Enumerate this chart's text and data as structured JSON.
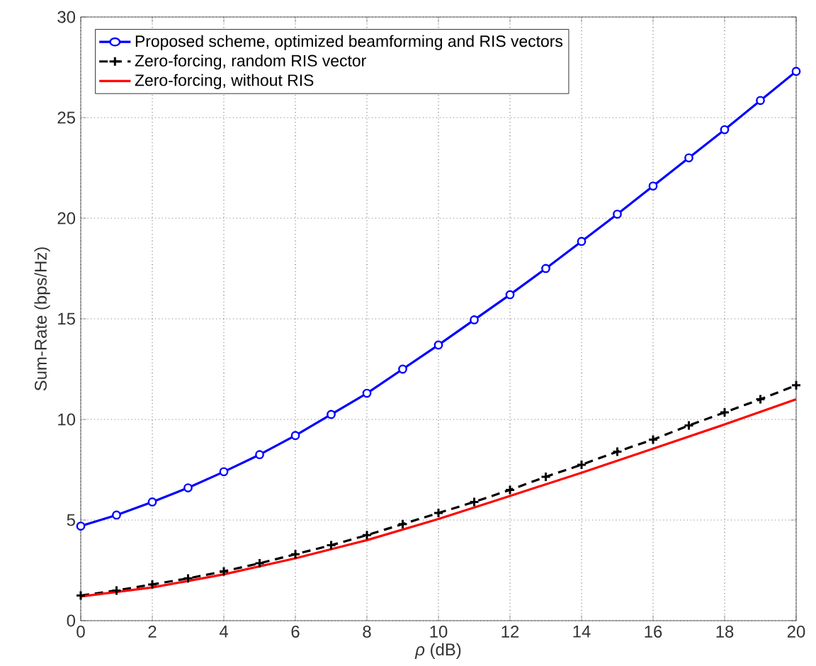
{
  "chart_data": {
    "type": "line",
    "xlabel": "*ρ* (dB)",
    "ylabel": "Sum-Rate (bps/Hz)",
    "x": [
      0,
      1,
      2,
      3,
      4,
      5,
      6,
      7,
      8,
      9,
      10,
      11,
      12,
      13,
      14,
      15,
      16,
      17,
      18,
      19,
      20
    ],
    "series": [
      {
        "name": "Proposed scheme, optimized beamforming and RIS vectors",
        "color": "#0000ff",
        "marker": "circle",
        "line_style": "solid",
        "values": [
          4.7,
          5.25,
          5.9,
          6.6,
          7.4,
          8.25,
          9.2,
          10.25,
          11.3,
          12.5,
          13.7,
          14.95,
          16.2,
          17.5,
          18.85,
          20.2,
          21.6,
          23.0,
          24.4,
          25.85,
          27.3
        ]
      },
      {
        "name": "Zero-forcing, random RIS vector",
        "color": "#000000",
        "marker": "cross",
        "line_style": "dashed",
        "values": [
          1.25,
          1.5,
          1.8,
          2.1,
          2.45,
          2.85,
          3.3,
          3.75,
          4.25,
          4.8,
          5.35,
          5.9,
          6.5,
          7.15,
          7.75,
          8.4,
          9.0,
          9.7,
          10.35,
          11.0,
          11.7
        ]
      },
      {
        "name": "Zero-forcing, without RIS",
        "color": "#ff0000",
        "marker": "none",
        "line_style": "solid",
        "x": [
          0,
          2,
          4,
          6,
          8,
          10,
          12,
          14,
          16,
          18,
          20
        ],
        "values": [
          1.2,
          1.65,
          2.3,
          3.1,
          4.0,
          5.05,
          6.2,
          7.35,
          8.55,
          9.75,
          11.0
        ]
      }
    ],
    "xlim": [
      0,
      20
    ],
    "ylim": [
      0,
      30
    ],
    "xticks": [
      0,
      2,
      4,
      6,
      8,
      10,
      12,
      14,
      16,
      18,
      20
    ],
    "yticks": [
      0,
      5,
      10,
      15,
      20,
      25,
      30
    ],
    "grid": true,
    "legend": "top left"
  }
}
